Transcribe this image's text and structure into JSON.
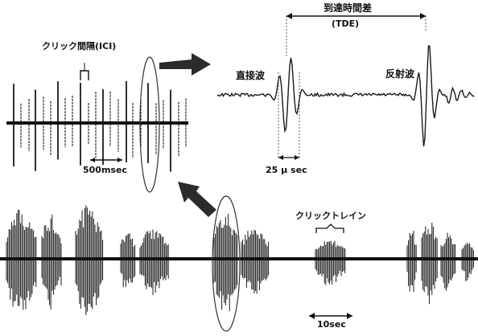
{
  "labels": {
    "ici": "クリック間隔(ICI)",
    "tde_title": "到達時間差",
    "tde_abbr": "(TDE)",
    "direct_wave": "直接波",
    "reflected_wave": "反射波",
    "interval_500": "500msec",
    "interval_25": "25 μ sec",
    "click_train": "クリックトレイン",
    "interval_10": "10sec"
  },
  "colors": {
    "ink": "#1a1a1a",
    "arrow": "#2b2b2b",
    "axis": "#111111"
  },
  "icons": {
    "right_arrow": "right-arrow-icon",
    "up_left_arrow": "up-left-arrow-icon"
  }
}
